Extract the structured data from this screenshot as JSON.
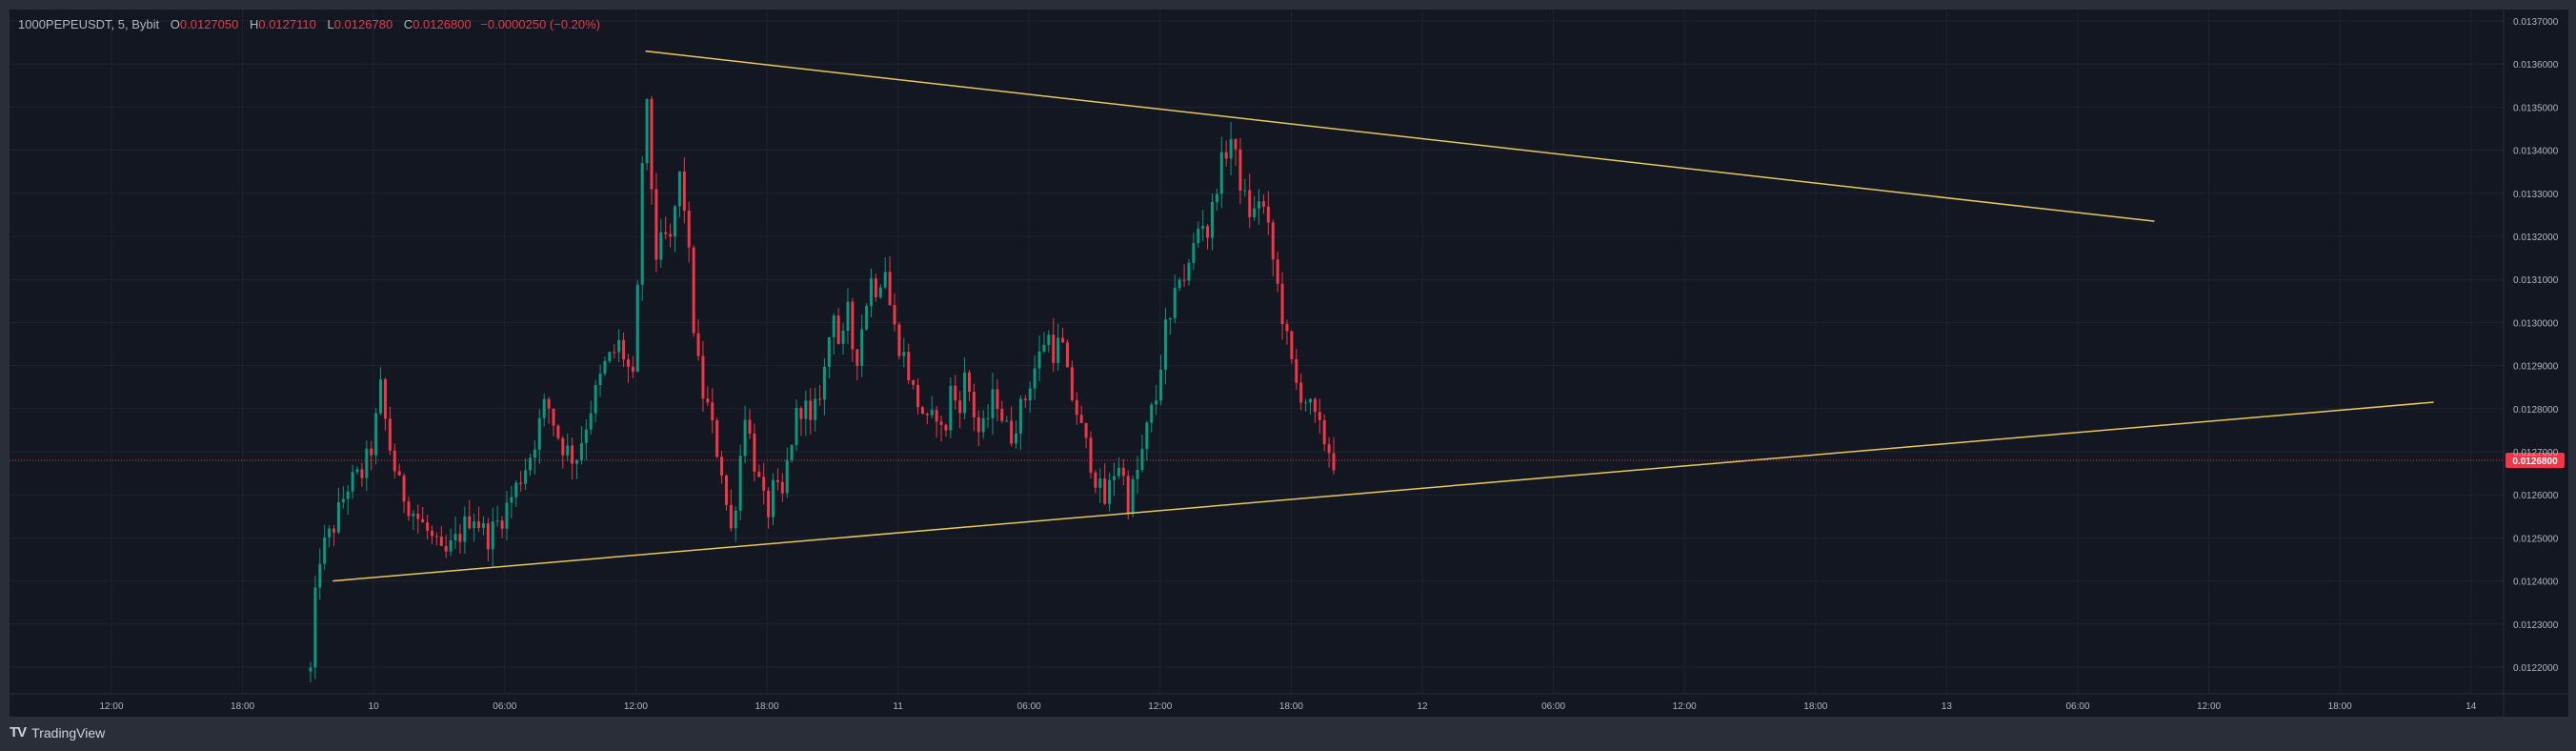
{
  "legend": {
    "symbol": "1000PEPEUSDT, 5, Bybit",
    "open_label": "O",
    "open": "0.0127050",
    "high_label": "H",
    "high": "0.0127110",
    "low_label": "L",
    "low": "0.0126780",
    "close_label": "C",
    "close": "0.0126800",
    "change": "−0.0000250 (−0.20%)"
  },
  "footer": {
    "brand": "TradingView",
    "icon": "tradingview-logo-icon"
  },
  "colors": {
    "background": "#131722",
    "grid": "#1f2230",
    "up": "#089981",
    "down": "#f23645",
    "trendline": "#e8c85a",
    "price_line": "#f23645",
    "axis_text": "#b2b5be"
  },
  "chart_data": {
    "type": "candlestick",
    "title": "1000PEPEUSDT, 5, Bybit",
    "interval": "5",
    "current_price": 0.01268,
    "current_price_label": "0.0126800",
    "ylim": [
      0.01215,
      0.0137
    ],
    "y_ticks": [
      "0.0122000",
      "0.0123000",
      "0.0124000",
      "0.0125000",
      "0.0126000",
      "0.0127000",
      "0.0128000",
      "0.0129000",
      "0.0130000",
      "0.0131000",
      "0.0132000",
      "0.0133000",
      "0.0134000",
      "0.0135000",
      "0.0136000",
      "0.0137000"
    ],
    "x_ticks": [
      "12:00",
      "18:00",
      "10",
      "06:00",
      "12:00",
      "18:00",
      "11",
      "06:00",
      "12:00",
      "18:00",
      "12",
      "06:00",
      "12:00",
      "18:00",
      "13",
      "06:00",
      "12:00",
      "18:00",
      "14"
    ],
    "price_path": [
      [
        0,
        0.01219
      ],
      [
        0.5,
        0.01232
      ],
      [
        1,
        0.01245
      ],
      [
        3,
        0.01252
      ],
      [
        5,
        0.01262
      ],
      [
        7,
        0.01265
      ],
      [
        8.5,
        0.01272
      ],
      [
        9.5,
        0.01285
      ],
      [
        10.5,
        0.01273
      ],
      [
        12,
        0.01262
      ],
      [
        14,
        0.01256
      ],
      [
        16,
        0.01251
      ],
      [
        18,
        0.01245
      ],
      [
        20,
        0.0125
      ],
      [
        22,
        0.01256
      ],
      [
        24,
        0.0125
      ],
      [
        26,
        0.01255
      ],
      [
        28,
        0.01262
      ],
      [
        30,
        0.0127
      ],
      [
        32,
        0.01282
      ],
      [
        34,
        0.01272
      ],
      [
        36,
        0.01268
      ],
      [
        38,
        0.0128
      ],
      [
        40,
        0.0129
      ],
      [
        42,
        0.01295
      ],
      [
        44,
        0.01285
      ],
      [
        44.5,
        0.0131
      ],
      [
        45,
        0.01335
      ],
      [
        45.5,
        0.01355
      ],
      [
        46,
        0.0134
      ],
      [
        47,
        0.01315
      ],
      [
        48,
        0.0132
      ],
      [
        49,
        0.01318
      ],
      [
        50,
        0.01335
      ],
      [
        51,
        0.01325
      ],
      [
        52,
        0.013
      ],
      [
        53,
        0.01285
      ],
      [
        54,
        0.0128
      ],
      [
        55,
        0.01272
      ],
      [
        56,
        0.01265
      ],
      [
        57,
        0.0125
      ],
      [
        58,
        0.01262
      ],
      [
        59,
        0.0128
      ],
      [
        60,
        0.0127
      ],
      [
        61,
        0.01262
      ],
      [
        62,
        0.01255
      ],
      [
        63,
        0.01262
      ],
      [
        64,
        0.01258
      ],
      [
        65,
        0.0127
      ],
      [
        66,
        0.01278
      ],
      [
        67,
        0.01282
      ],
      [
        68,
        0.01275
      ],
      [
        69,
        0.01283
      ],
      [
        70,
        0.0129
      ],
      [
        71,
        0.01305
      ],
      [
        72,
        0.01292
      ],
      [
        73,
        0.01302
      ],
      [
        74,
        0.0129
      ],
      [
        75,
        0.013
      ],
      [
        76,
        0.0131
      ],
      [
        77,
        0.01308
      ],
      [
        78,
        0.01314
      ],
      [
        79,
        0.013
      ],
      [
        80,
        0.01295
      ],
      [
        81,
        0.0129
      ],
      [
        82,
        0.01283
      ],
      [
        83,
        0.0128
      ],
      [
        84,
        0.01275
      ],
      [
        85,
        0.0128
      ],
      [
        86,
        0.01272
      ],
      [
        87,
        0.01285
      ],
      [
        88,
        0.0128
      ],
      [
        89,
        0.01288
      ],
      [
        90,
        0.0128
      ],
      [
        91,
        0.01273
      ],
      [
        92,
        0.01278
      ],
      [
        93,
        0.01284
      ],
      [
        94,
        0.01278
      ],
      [
        95,
        0.01273
      ],
      [
        96,
        0.01278
      ],
      [
        97,
        0.01282
      ],
      [
        98,
        0.01288
      ],
      [
        99,
        0.01292
      ],
      [
        100,
        0.01298
      ],
      [
        101,
        0.01293
      ],
      [
        102,
        0.01296
      ],
      [
        103,
        0.01285
      ],
      [
        104,
        0.0128
      ],
      [
        105,
        0.01273
      ],
      [
        106,
        0.01268
      ],
      [
        107,
        0.01262
      ],
      [
        108,
        0.01258
      ],
      [
        109,
        0.01265
      ],
      [
        110,
        0.01268
      ],
      [
        111,
        0.01258
      ],
      [
        112,
        0.01263
      ],
      [
        113,
        0.0127
      ],
      [
        114,
        0.01278
      ],
      [
        115,
        0.01283
      ],
      [
        116,
        0.01298
      ],
      [
        117,
        0.013
      ],
      [
        118,
        0.01312
      ],
      [
        119,
        0.0131
      ],
      [
        120,
        0.01318
      ],
      [
        121,
        0.01325
      ],
      [
        122,
        0.0132
      ],
      [
        123,
        0.01332
      ],
      [
        124,
        0.01338
      ],
      [
        125,
        0.01343
      ],
      [
        126,
        0.01335
      ],
      [
        127,
        0.01328
      ],
      [
        128,
        0.01324
      ],
      [
        129,
        0.0133
      ],
      [
        130,
        0.01322
      ],
      [
        131,
        0.01312
      ],
      [
        132,
        0.01302
      ],
      [
        133,
        0.01292
      ],
      [
        134,
        0.01285
      ],
      [
        135,
        0.01283
      ],
      [
        136,
        0.01279
      ],
      [
        137,
        0.01275
      ],
      [
        138,
        0.01272
      ],
      [
        139,
        0.01268
      ]
    ],
    "price_path_x_range": [
      0,
      139
    ],
    "trendlines": [
      {
        "name": "upper",
        "points": [
          [
            "candle",
            45.5,
            0.01363
          ],
          [
            "future",
            0.86,
            0.013235
          ]
        ]
      },
      {
        "name": "lower",
        "points": [
          [
            "candle",
            3.0,
            0.0124
          ],
          [
            "future",
            0.972,
            0.012815
          ]
        ]
      }
    ]
  }
}
